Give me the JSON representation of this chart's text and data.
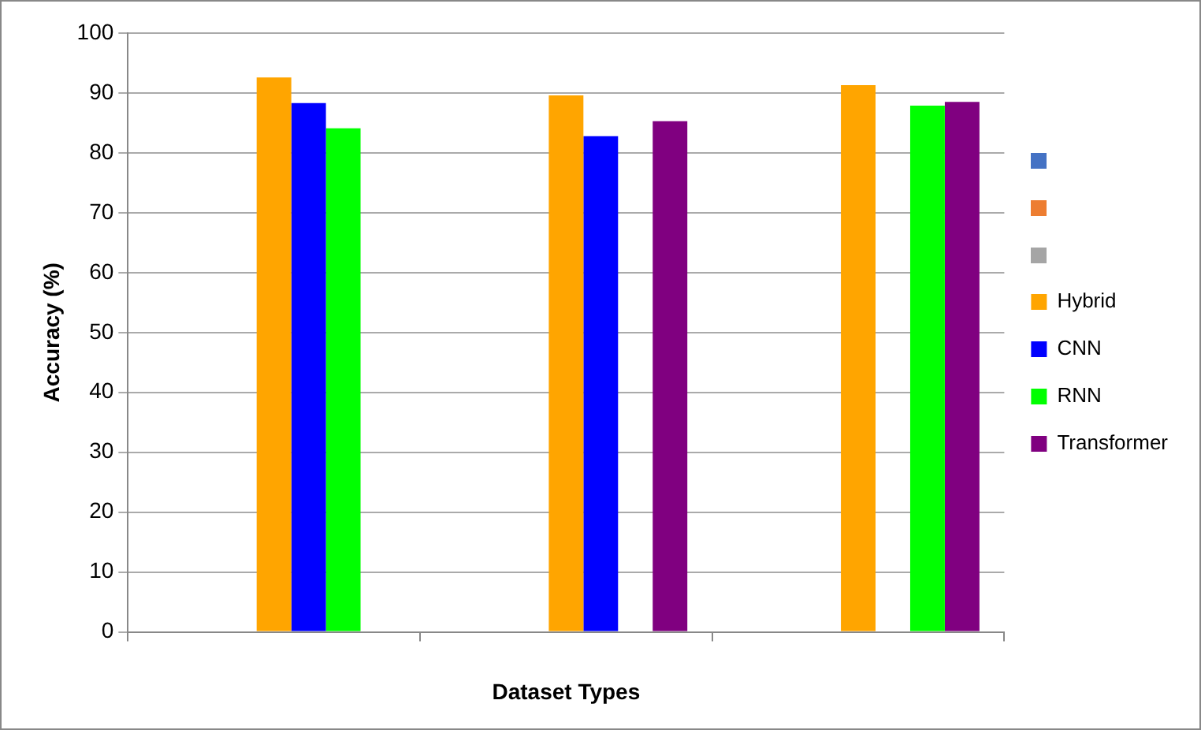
{
  "chart_data": {
    "type": "bar",
    "xlabel": "Dataset Types",
    "ylabel": "Accuracy (%)",
    "categories": [
      null,
      null,
      null
    ],
    "series": [
      {
        "name": "Hybrid",
        "color": "#ffa500",
        "values": [
          92.6,
          89.6,
          91.3
        ]
      },
      {
        "name": "CNN",
        "color": "#0000ff",
        "values": [
          88.3,
          82.8,
          null
        ]
      },
      {
        "name": "RNN",
        "color": "#00ff00",
        "values": [
          84.1,
          null,
          87.9
        ]
      },
      {
        "name": "Transformer",
        "color": "#800080",
        "values": [
          null,
          85.3,
          88.5
        ]
      }
    ],
    "ylim": [
      0,
      100
    ],
    "yticks": [
      0,
      10,
      20,
      30,
      40,
      50,
      60,
      70,
      80,
      90,
      100
    ],
    "grid": "y",
    "legend": "right"
  }
}
